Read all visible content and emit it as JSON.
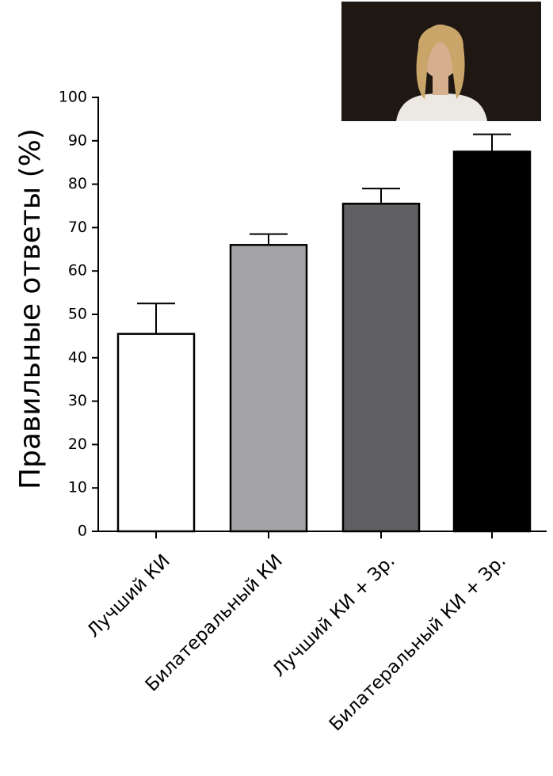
{
  "chart_data": {
    "type": "bar",
    "y_label": "Правильные ответы (%)",
    "categories": [
      "Лучший КИ",
      "Билатеральный КИ",
      "Лучший КИ + Зр.",
      "Билатеральный КИ + Зр."
    ],
    "values": [
      45.5,
      66,
      75.5,
      87.5
    ],
    "errors": [
      7,
      2.5,
      3.5,
      4
    ],
    "colors": [
      "#ffffff",
      "#a4a4a8",
      "#606062",
      "#000000"
    ],
    "ylim": [
      0,
      100
    ],
    "yticks": [
      0,
      10,
      20,
      30,
      40,
      50,
      60,
      70,
      80,
      90,
      100
    ]
  }
}
